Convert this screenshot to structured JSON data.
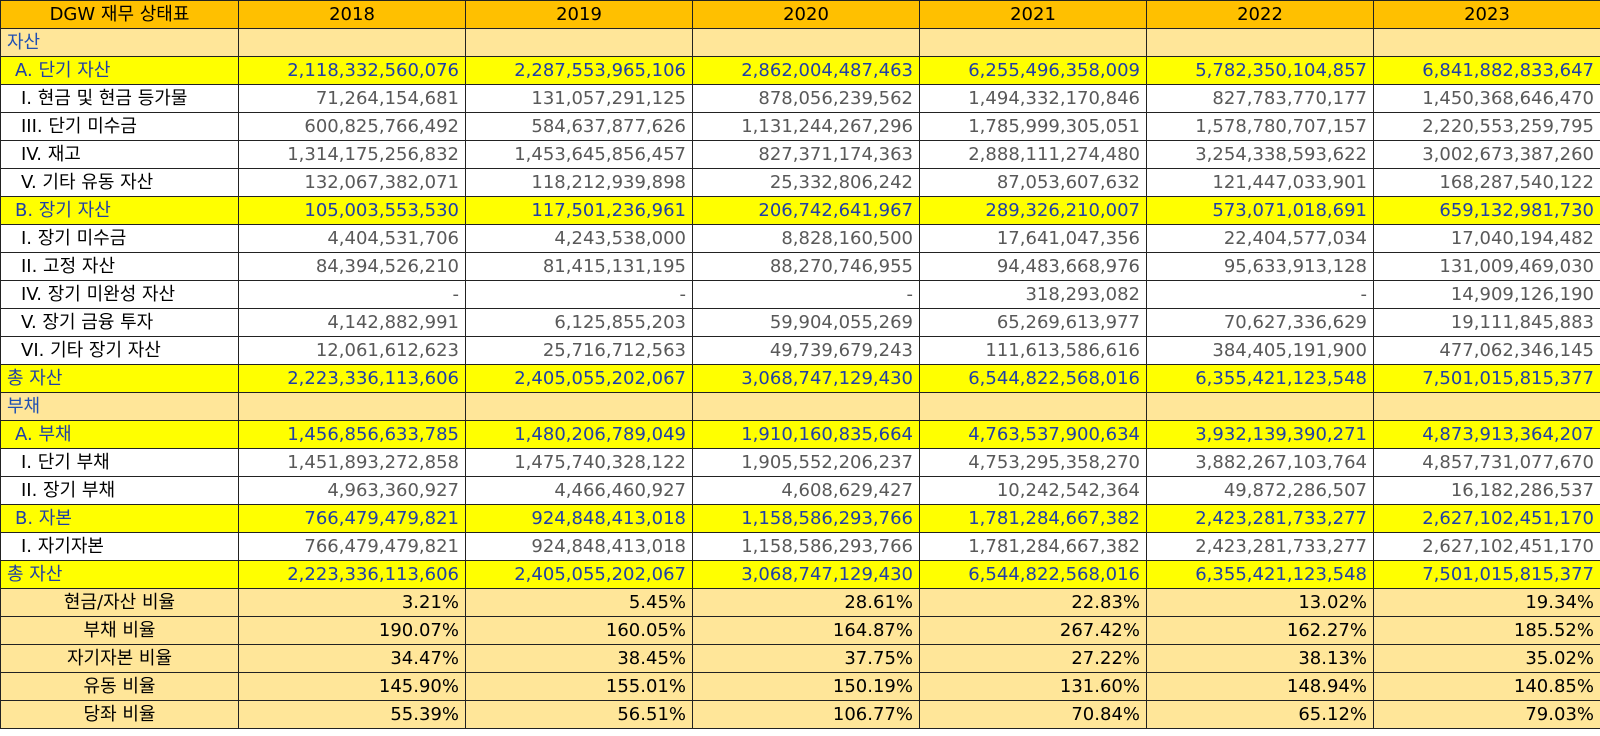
{
  "sheet": {
    "title": "DGW 재무 상태표",
    "years": [
      "2018",
      "2019",
      "2020",
      "2021",
      "2022",
      "2023"
    ],
    "rows": [
      {
        "type": "section",
        "label": "자산",
        "values": [
          "",
          "",
          "",
          "",
          "",
          ""
        ]
      },
      {
        "type": "subtotal",
        "label": "A. 단기 자산",
        "values": [
          "2,118,332,560,076",
          "2,287,553,965,106",
          "2,862,004,487,463",
          "6,255,496,358,009",
          "5,782,350,104,857",
          "6,841,882,833,647"
        ]
      },
      {
        "type": "detail",
        "label": "I. 현금 및 현금 등가물",
        "values": [
          "71,264,154,681",
          "131,057,291,125",
          "878,056,239,562",
          "1,494,332,170,846",
          "827,783,770,177",
          "1,450,368,646,470"
        ]
      },
      {
        "type": "detail",
        "label": "III. 단기 미수금",
        "values": [
          "600,825,766,492",
          "584,637,877,626",
          "1,131,244,267,296",
          "1,785,999,305,051",
          "1,578,780,707,157",
          "2,220,553,259,795"
        ]
      },
      {
        "type": "detail",
        "label": "IV. 재고",
        "values": [
          "1,314,175,256,832",
          "1,453,645,856,457",
          "827,371,174,363",
          "2,888,111,274,480",
          "3,254,338,593,622",
          "3,002,673,387,260"
        ]
      },
      {
        "type": "detail",
        "label": "V. 기타 유동 자산",
        "values": [
          "132,067,382,071",
          "118,212,939,898",
          "25,332,806,242",
          "87,053,607,632",
          "121,447,033,901",
          "168,287,540,122"
        ]
      },
      {
        "type": "subtotal",
        "label": "B. 장기 자산",
        "values": [
          "105,003,553,530",
          "117,501,236,961",
          "206,742,641,967",
          "289,326,210,007",
          "573,071,018,691",
          "659,132,981,730"
        ]
      },
      {
        "type": "detail",
        "label": "I. 장기 미수금",
        "values": [
          "4,404,531,706",
          "4,243,538,000",
          "8,828,160,500",
          "17,641,047,356",
          "22,404,577,034",
          "17,040,194,482"
        ]
      },
      {
        "type": "detail",
        "label": "II. 고정 자산",
        "values": [
          "84,394,526,210",
          "81,415,131,195",
          "88,270,746,955",
          "94,483,668,976",
          "95,633,913,128",
          "131,009,469,030"
        ]
      },
      {
        "type": "detail",
        "label": "IV. 장기 미완성 자산",
        "values": [
          "-",
          "-",
          "-",
          "318,293,082",
          "-",
          "14,909,126,190"
        ]
      },
      {
        "type": "detail",
        "label": "V. 장기 금융 투자",
        "values": [
          "4,142,882,991",
          "6,125,855,203",
          "59,904,055,269",
          "65,269,613,977",
          "70,627,336,629",
          "19,111,845,883"
        ]
      },
      {
        "type": "detail",
        "label": "VI. 기타 장기 자산",
        "values": [
          "12,061,612,623",
          "25,716,712,563",
          "49,739,679,243",
          "111,613,586,616",
          "384,405,191,900",
          "477,062,346,145"
        ]
      },
      {
        "type": "total",
        "label": "총 자산",
        "values": [
          "2,223,336,113,606",
          "2,405,055,202,067",
          "3,068,747,129,430",
          "6,544,822,568,016",
          "6,355,421,123,548",
          "7,501,015,815,377"
        ]
      },
      {
        "type": "section",
        "label": "부채",
        "values": [
          "",
          "",
          "",
          "",
          "",
          ""
        ]
      },
      {
        "type": "subtotal",
        "label": "A. 부채",
        "values": [
          "1,456,856,633,785",
          "1,480,206,789,049",
          "1,910,160,835,664",
          "4,763,537,900,634",
          "3,932,139,390,271",
          "4,873,913,364,207"
        ]
      },
      {
        "type": "detail",
        "label": "I. 단기 부채",
        "values": [
          "1,451,893,272,858",
          "1,475,740,328,122",
          "1,905,552,206,237",
          "4,753,295,358,270",
          "3,882,267,103,764",
          "4,857,731,077,670"
        ]
      },
      {
        "type": "detail",
        "label": "II. 장기 부채",
        "values": [
          "4,963,360,927",
          "4,466,460,927",
          "4,608,629,427",
          "10,242,542,364",
          "49,872,286,507",
          "16,182,286,537"
        ]
      },
      {
        "type": "subtotal",
        "label": "B. 자본",
        "values": [
          "766,479,479,821",
          "924,848,413,018",
          "1,158,586,293,766",
          "1,781,284,667,382",
          "2,423,281,733,277",
          "2,627,102,451,170"
        ]
      },
      {
        "type": "detail",
        "label": "I. 자기자본",
        "values": [
          "766,479,479,821",
          "924,848,413,018",
          "1,158,586,293,766",
          "1,781,284,667,382",
          "2,423,281,733,277",
          "2,627,102,451,170"
        ]
      },
      {
        "type": "total",
        "label": "총 자산",
        "values": [
          "2,223,336,113,606",
          "2,405,055,202,067",
          "3,068,747,129,430",
          "6,544,822,568,016",
          "6,355,421,123,548",
          "7,501,015,815,377"
        ]
      },
      {
        "type": "ratio",
        "label": "현금/자산 비율",
        "values": [
          "3.21%",
          "5.45%",
          "28.61%",
          "22.83%",
          "13.02%",
          "19.34%"
        ]
      },
      {
        "type": "ratio",
        "label": "부채 비율",
        "values": [
          "190.07%",
          "160.05%",
          "164.87%",
          "267.42%",
          "162.27%",
          "185.52%"
        ]
      },
      {
        "type": "ratio",
        "label": "자기자본 비율",
        "values": [
          "34.47%",
          "38.45%",
          "37.75%",
          "27.22%",
          "38.13%",
          "35.02%"
        ]
      },
      {
        "type": "ratio",
        "label": "유동 비율",
        "values": [
          "145.90%",
          "155.01%",
          "150.19%",
          "131.60%",
          "148.94%",
          "140.85%"
        ]
      },
      {
        "type": "ratio",
        "label": "당좌 비율",
        "values": [
          "55.39%",
          "56.51%",
          "106.77%",
          "70.84%",
          "65.12%",
          "79.03%"
        ]
      }
    ]
  }
}
